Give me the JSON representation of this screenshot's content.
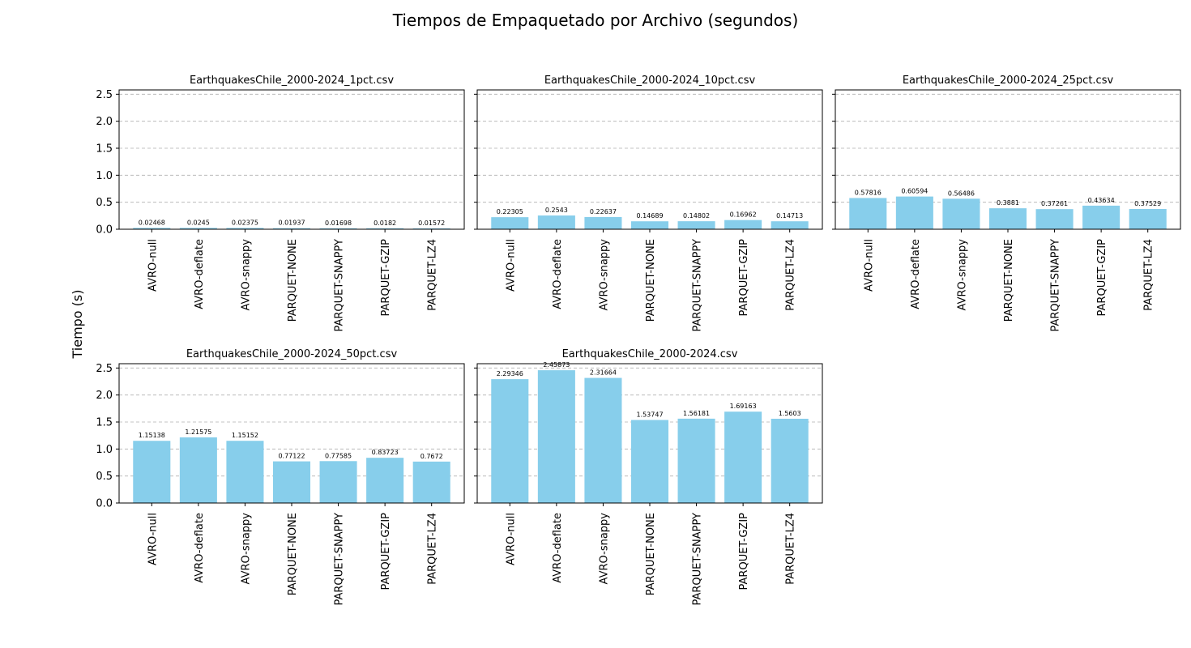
{
  "figure": {
    "suptitle": "Tiempos de Empaquetado por Archivo (segundos)",
    "ylabel": "Tiempo (s)"
  },
  "chart_data": [
    {
      "type": "bar",
      "title": "EarthquakesChile_2000-2024_1pct.csv",
      "categories": [
        "AVRO-null",
        "AVRO-deflate",
        "AVRO-snappy",
        "PARQUET-NONE",
        "PARQUET-SNAPPY",
        "PARQUET-GZIP",
        "PARQUET-LZ4"
      ],
      "values": [
        0.02468,
        0.0245,
        0.02375,
        0.01937,
        0.01698,
        0.0182,
        0.01572
      ],
      "labels": [
        "0.02468",
        "0.0245",
        "0.02375",
        "0.01937",
        "0.01698",
        "0.0182",
        "0.01572"
      ],
      "ylim": [
        0,
        2.58
      ],
      "yticks": [
        "0.0",
        "0.5",
        "1.0",
        "1.5",
        "2.0",
        "2.5"
      ],
      "color": "#87ceeb",
      "grid": true
    },
    {
      "type": "bar",
      "title": "EarthquakesChile_2000-2024_10pct.csv",
      "categories": [
        "AVRO-null",
        "AVRO-deflate",
        "AVRO-snappy",
        "PARQUET-NONE",
        "PARQUET-SNAPPY",
        "PARQUET-GZIP",
        "PARQUET-LZ4"
      ],
      "values": [
        0.22305,
        0.2543,
        0.22637,
        0.14689,
        0.14802,
        0.16962,
        0.14713
      ],
      "labels": [
        "0.22305",
        "0.2543",
        "0.22637",
        "0.14689",
        "0.14802",
        "0.16962",
        "0.14713"
      ],
      "ylim": [
        0,
        2.58
      ],
      "yticks": [
        "0.0",
        "0.5",
        "1.0",
        "1.5",
        "2.0",
        "2.5"
      ],
      "color": "#87ceeb",
      "grid": true
    },
    {
      "type": "bar",
      "title": "EarthquakesChile_2000-2024_25pct.csv",
      "categories": [
        "AVRO-null",
        "AVRO-deflate",
        "AVRO-snappy",
        "PARQUET-NONE",
        "PARQUET-SNAPPY",
        "PARQUET-GZIP",
        "PARQUET-LZ4"
      ],
      "values": [
        0.57816,
        0.60594,
        0.56486,
        0.3881,
        0.37261,
        0.43634,
        0.37529
      ],
      "labels": [
        "0.57816",
        "0.60594",
        "0.56486",
        "0.3881",
        "0.37261",
        "0.43634",
        "0.37529"
      ],
      "ylim": [
        0,
        2.58
      ],
      "yticks": [
        "0.0",
        "0.5",
        "1.0",
        "1.5",
        "2.0",
        "2.5"
      ],
      "color": "#87ceeb",
      "grid": true
    },
    {
      "type": "bar",
      "title": "EarthquakesChile_2000-2024_50pct.csv",
      "categories": [
        "AVRO-null",
        "AVRO-deflate",
        "AVRO-snappy",
        "PARQUET-NONE",
        "PARQUET-SNAPPY",
        "PARQUET-GZIP",
        "PARQUET-LZ4"
      ],
      "values": [
        1.15138,
        1.21575,
        1.15152,
        0.77122,
        0.77585,
        0.83723,
        0.7672
      ],
      "labels": [
        "1.15138",
        "1.21575",
        "1.15152",
        "0.77122",
        "0.77585",
        "0.83723",
        "0.7672"
      ],
      "ylim": [
        0,
        2.58
      ],
      "yticks": [
        "0.0",
        "0.5",
        "1.0",
        "1.5",
        "2.0",
        "2.5"
      ],
      "color": "#87ceeb",
      "grid": true
    },
    {
      "type": "bar",
      "title": "EarthquakesChile_2000-2024.csv",
      "categories": [
        "AVRO-null",
        "AVRO-deflate",
        "AVRO-snappy",
        "PARQUET-NONE",
        "PARQUET-SNAPPY",
        "PARQUET-GZIP",
        "PARQUET-LZ4"
      ],
      "values": [
        2.29346,
        2.45873,
        2.31664,
        1.53747,
        1.56181,
        1.69163,
        1.5603
      ],
      "labels": [
        "2.29346",
        "2.45873",
        "2.31664",
        "1.53747",
        "1.56181",
        "1.69163",
        "1.5603"
      ],
      "ylim": [
        0,
        2.58
      ],
      "yticks": [
        "0.0",
        "0.5",
        "1.0",
        "1.5",
        "2.0",
        "2.5"
      ],
      "color": "#87ceeb",
      "grid": true
    }
  ]
}
